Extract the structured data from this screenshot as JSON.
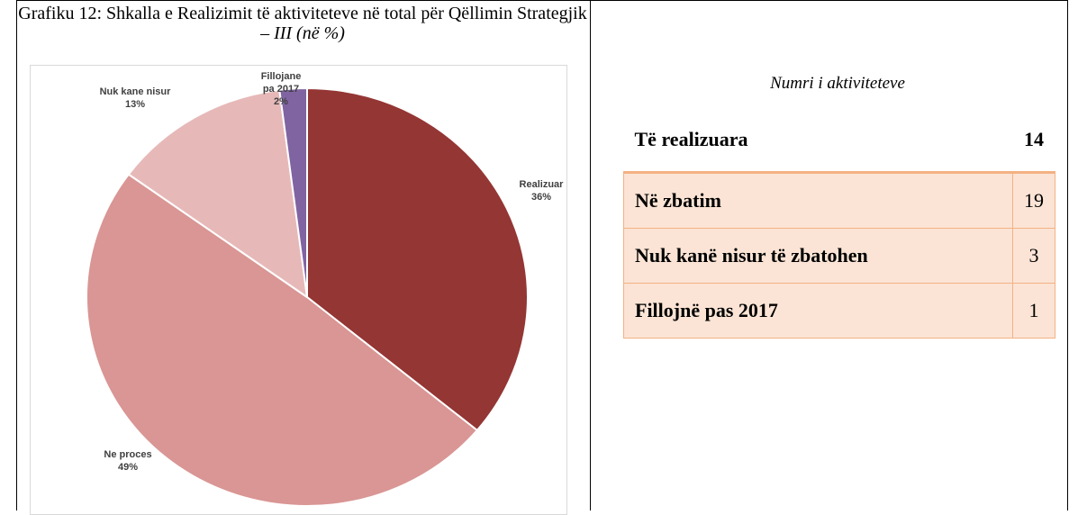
{
  "chart_data": {
    "type": "pie",
    "title": "Grafiku 12: Shkalla e Realizimit të aktiviteteve në total për Qëllimin Strategjik –",
    "title_italic": "III (në %)",
    "categories": [
      "Realizuar",
      "Ne proces",
      "Nuk kane nisur",
      "Fillojane pa 2017"
    ],
    "values": [
      36,
      49,
      13,
      2
    ],
    "value_labels": [
      "36%",
      "49%",
      "13%",
      "2%"
    ],
    "colors": [
      "#943634",
      "#d99694",
      "#e6b9b8",
      "#8064a2"
    ]
  },
  "table": {
    "caption": "Numri i aktiviteteve",
    "rows": [
      [
        "Të realizuara",
        14
      ],
      [
        "Në zbatim",
        19
      ],
      [
        "Nuk kanë nisur të zbatohen",
        3
      ],
      [
        "Fillojnë pas 2017",
        1
      ]
    ]
  }
}
